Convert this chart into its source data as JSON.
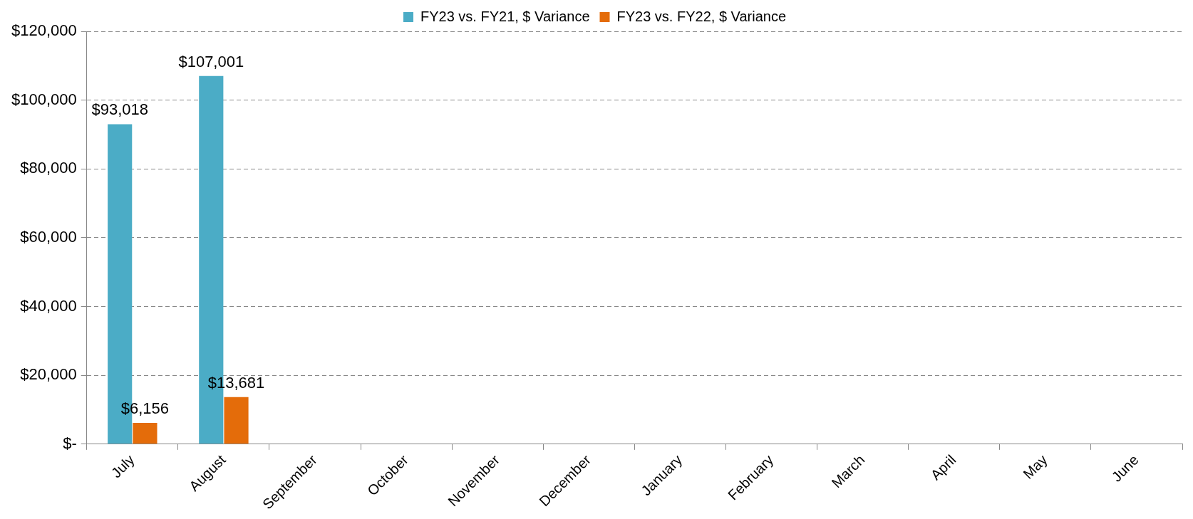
{
  "chart_data": {
    "type": "bar",
    "categories": [
      "July",
      "August",
      "September",
      "October",
      "November",
      "December",
      "January",
      "February",
      "March",
      "April",
      "May",
      "June"
    ],
    "series": [
      {
        "name": "FY23 vs. FY21, $ Variance",
        "color": "#4bacc6",
        "values": [
          93018,
          107001,
          null,
          null,
          null,
          null,
          null,
          null,
          null,
          null,
          null,
          null
        ],
        "value_labels": [
          "$93,018",
          "$107,001",
          null,
          null,
          null,
          null,
          null,
          null,
          null,
          null,
          null,
          null
        ]
      },
      {
        "name": "FY23 vs. FY22, $ Variance",
        "color": "#e46c0a",
        "values": [
          6156,
          13681,
          null,
          null,
          null,
          null,
          null,
          null,
          null,
          null,
          null,
          null
        ],
        "value_labels": [
          "$6,156",
          "$13,681",
          null,
          null,
          null,
          null,
          null,
          null,
          null,
          null,
          null,
          null
        ]
      }
    ],
    "ylim": [
      0,
      120000
    ],
    "yticks": [
      {
        "value": 0,
        "label": "$-"
      },
      {
        "value": 20000,
        "label": "$20,000"
      },
      {
        "value": 40000,
        "label": "$40,000"
      },
      {
        "value": 60000,
        "label": "$60,000"
      },
      {
        "value": 80000,
        "label": "$80,000"
      },
      {
        "value": 100000,
        "label": "$100,000"
      },
      {
        "value": 120000,
        "label": "$120,000"
      }
    ],
    "grid": "y",
    "legend": "top"
  }
}
